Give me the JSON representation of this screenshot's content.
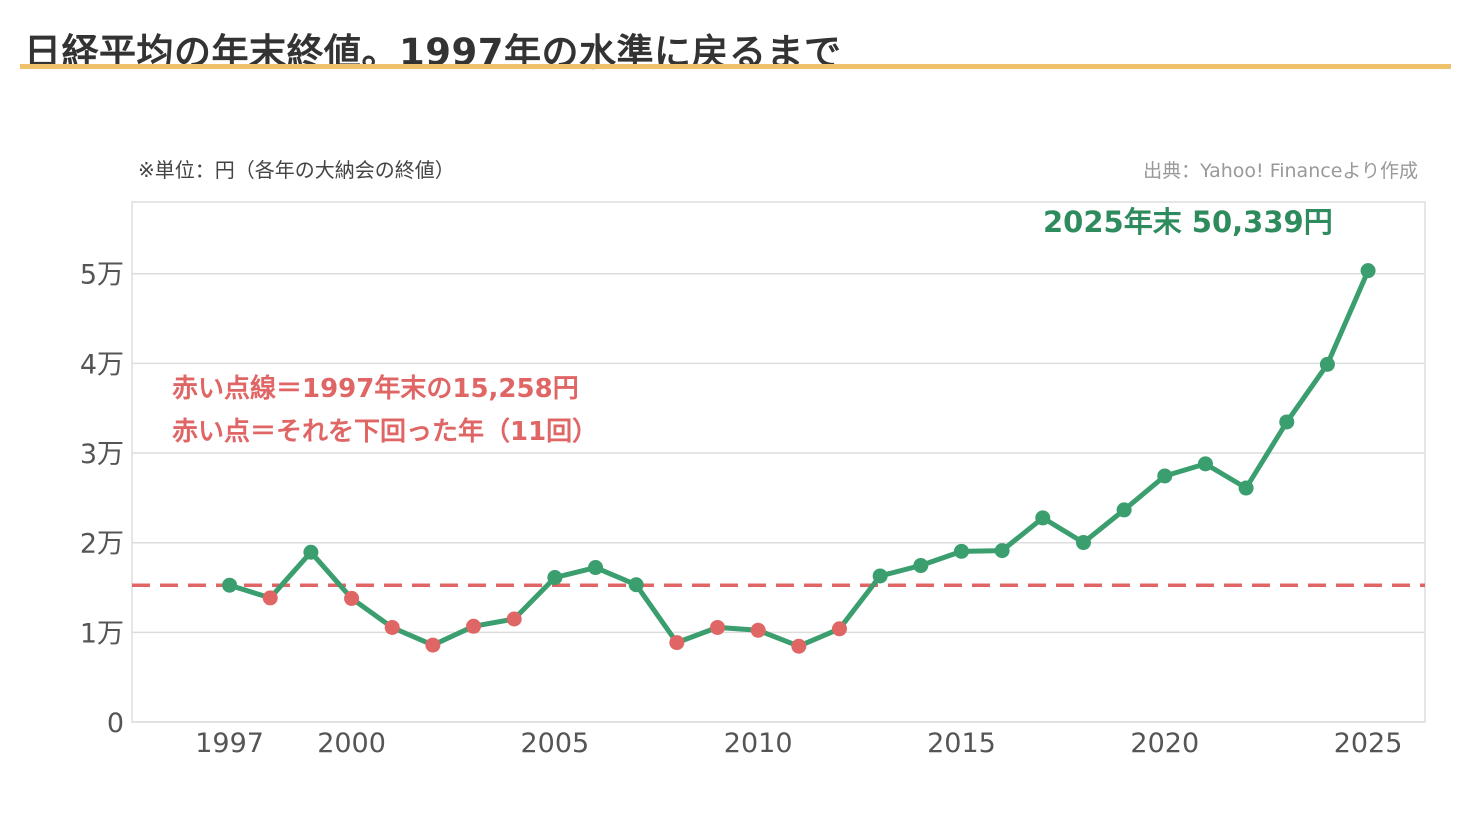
{
  "header": {
    "title": "日経平均の年末終値。1997年の水準に戻るまで",
    "unit_note": "※単位：円（各年の大納会の終値）",
    "source_note": "出典：Yahoo! Financeより作成"
  },
  "colors": {
    "line": "#3a9e6e",
    "below_marker": "#e06666",
    "reference_line": "#e06666",
    "title_rule": "#f0c16b",
    "grid": "#dddddd"
  },
  "chart_data": {
    "type": "line",
    "x": [
      1997,
      1998,
      1999,
      2000,
      2001,
      2002,
      2003,
      2004,
      2005,
      2006,
      2007,
      2008,
      2009,
      2010,
      2011,
      2012,
      2013,
      2014,
      2015,
      2016,
      2017,
      2018,
      2019,
      2020,
      2021,
      2022,
      2023,
      2024,
      2025
    ],
    "series": [
      {
        "values": [
          15258,
          13842,
          18934,
          13786,
          10543,
          8579,
          10677,
          11489,
          16111,
          17226,
          15308,
          8860,
          10546,
          10229,
          8455,
          10395,
          16291,
          17451,
          19034,
          19114,
          22765,
          20015,
          23657,
          27444,
          28792,
          26095,
          33464,
          39895,
          50339
        ]
      }
    ],
    "below_reference_years": [
      1998,
      2000,
      2001,
      2002,
      2003,
      2004,
      2008,
      2009,
      2010,
      2011,
      2012
    ],
    "reference_line": {
      "value": 15258
    },
    "xlim": [
      1994.6,
      2026.4
    ],
    "ylim": [
      0,
      58000
    ],
    "yticks": [
      0,
      10000,
      20000,
      30000,
      40000,
      50000
    ],
    "ytick_labels": [
      "0",
      "1万",
      "2万",
      "3万",
      "4万",
      "5万"
    ],
    "xticks": [
      1997,
      2000,
      2005,
      2010,
      2015,
      2020,
      2025
    ],
    "xtick_labels": [
      "1997",
      "2000",
      "2005",
      "2010",
      "2015",
      "2020",
      "2025"
    ],
    "grid": "horizontal",
    "annotations": {
      "final_value": "2025年末 50,339円",
      "reference_note_1": "赤い点線＝1997年末の15,258円",
      "reference_note_2": "赤い点＝それを下回った年（11回）"
    }
  }
}
